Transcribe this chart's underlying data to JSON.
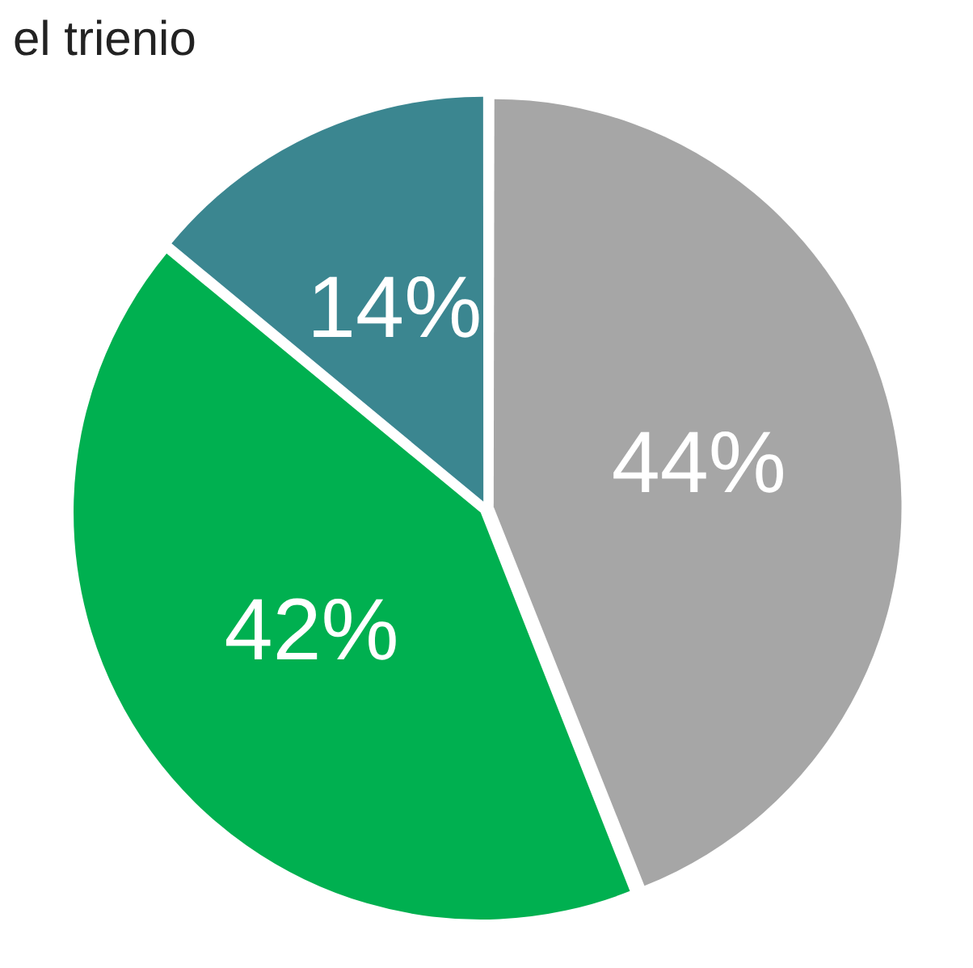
{
  "chart_data": {
    "type": "pie",
    "title": "el trienio",
    "categories": [
      null,
      null,
      null
    ],
    "values": [
      44,
      42,
      14
    ],
    "colors": [
      "#a6a6a6",
      "#00b050",
      "#3b8690"
    ],
    "value_labels": [
      "44%",
      "42%",
      "14%"
    ],
    "legend": false
  }
}
